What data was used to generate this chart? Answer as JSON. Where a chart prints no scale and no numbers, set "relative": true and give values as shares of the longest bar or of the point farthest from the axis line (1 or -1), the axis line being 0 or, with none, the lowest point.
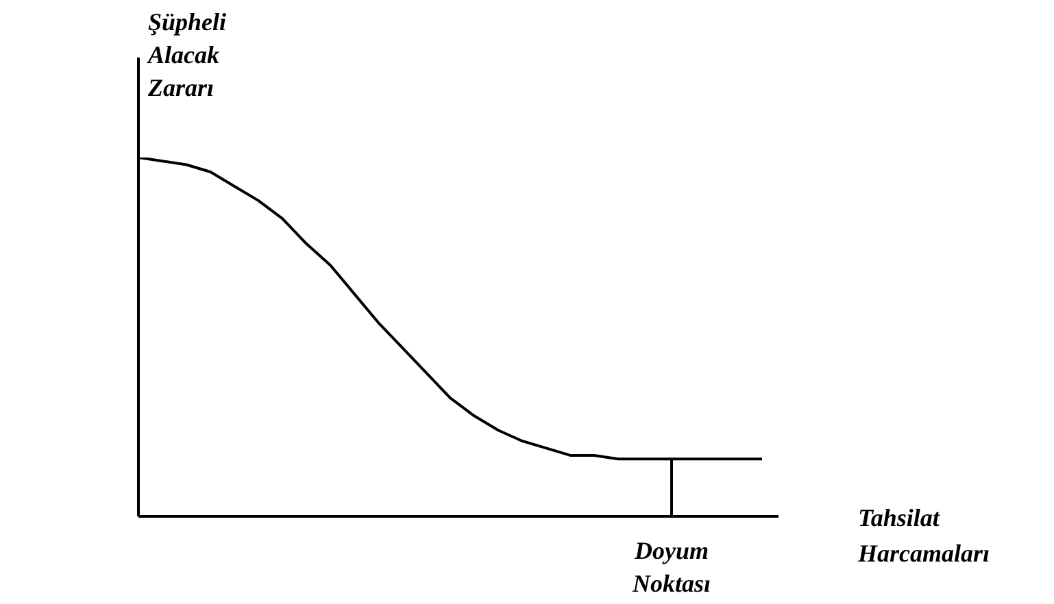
{
  "chart_data": {
    "type": "line",
    "relative": true,
    "ylabel": "Şüpheli Alacak Zararı",
    "xlabel": "Tahsilat Harcamaları",
    "annotations": [
      "Doyum Noktası"
    ],
    "categories": [
      null,
      null,
      null,
      null,
      null,
      null,
      null,
      null,
      null,
      null,
      null,
      null,
      null,
      null,
      null,
      null,
      null,
      null,
      null,
      null,
      null,
      null,
      null,
      null,
      null,
      null,
      null
    ],
    "series": [
      {
        "color": "#000000",
        "values": [
          1,
          0.99,
          0.98,
          0.96,
          0.92,
          0.88,
          0.83,
          0.76,
          0.7,
          0.62,
          0.54,
          0.47,
          0.4,
          0.33,
          0.28,
          0.24,
          0.21,
          0.19,
          0.17,
          0.17,
          0.16,
          0.16,
          0.16,
          0.16,
          0.16,
          0.16,
          0.16
        ]
      }
    ],
    "grid": false,
    "legend": false,
    "marker": "none",
    "line_style": "solid"
  }
}
